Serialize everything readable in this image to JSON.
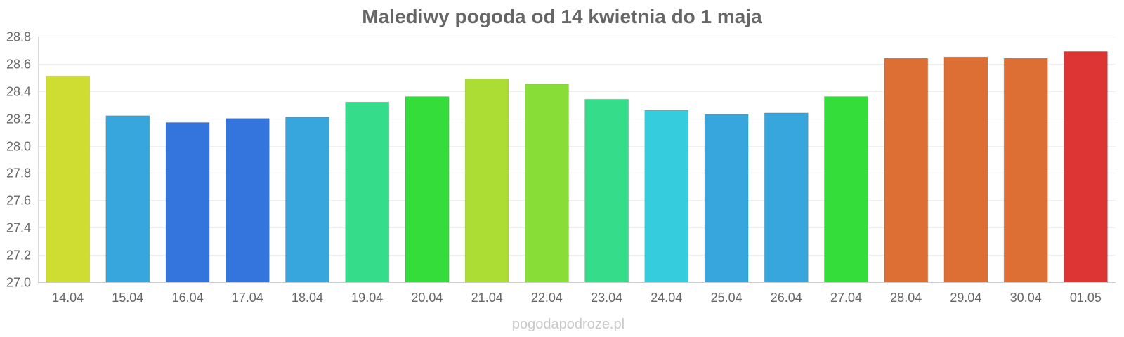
{
  "chart_data": {
    "type": "bar",
    "title": "Malediwy pogoda od 14 kwietnia do 1 maja",
    "categories": [
      "14.04",
      "15.04",
      "16.04",
      "17.04",
      "18.04",
      "19.04",
      "20.04",
      "21.04",
      "22.04",
      "23.04",
      "24.04",
      "25.04",
      "26.04",
      "27.04",
      "28.04",
      "29.04",
      "30.04",
      "01.05"
    ],
    "values": [
      28.51,
      28.22,
      28.17,
      28.2,
      28.21,
      28.32,
      28.36,
      28.49,
      28.45,
      28.34,
      28.26,
      28.23,
      28.24,
      28.36,
      28.64,
      28.65,
      28.64,
      28.69
    ],
    "colors": [
      "#cfdd32",
      "#36a6dd",
      "#3474dd",
      "#3474dd",
      "#36a6dd",
      "#35dd8a",
      "#35dd3a",
      "#acdd34",
      "#88dd36",
      "#35dd8a",
      "#35cddd",
      "#36a6dd",
      "#36a6dd",
      "#35dd3a",
      "#dd6e34",
      "#dd6e34",
      "#dd6e34",
      "#dd3434"
    ],
    "ylim": [
      27.0,
      28.8
    ],
    "yticks": [
      "27.0",
      "27.2",
      "27.4",
      "27.6",
      "27.8",
      "28.0",
      "28.2",
      "28.4",
      "28.6",
      "28.8"
    ],
    "xlabel": "",
    "ylabel": "",
    "grid": true,
    "legend": "none"
  },
  "watermark": "pogodapodroze.pl"
}
